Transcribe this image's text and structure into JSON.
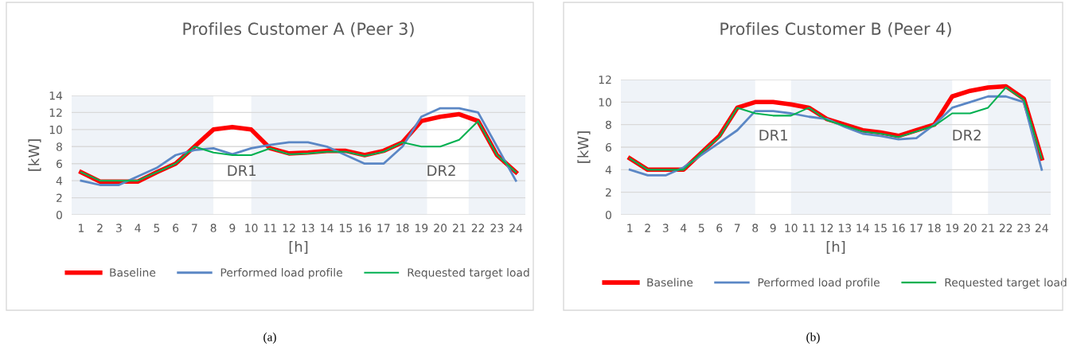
{
  "chart_data": [
    {
      "type": "line",
      "title": "Profiles Customer A (Peer 3)",
      "xlabel": "[h]",
      "ylabel": "[kW]",
      "x": [
        1,
        2,
        3,
        4,
        5,
        6,
        7,
        8,
        9,
        10,
        11,
        12,
        13,
        14,
        15,
        16,
        17,
        18,
        19,
        20,
        21,
        22,
        23,
        24
      ],
      "xlim": [
        0.5,
        24.5
      ],
      "xticks": [
        1,
        2,
        3,
        4,
        5,
        6,
        7,
        8,
        9,
        10,
        11,
        12,
        13,
        14,
        15,
        16,
        17,
        18,
        19,
        20,
        21,
        22,
        23,
        24
      ],
      "ylim": [
        0,
        14
      ],
      "yticks": [
        0,
        2,
        4,
        6,
        8,
        10,
        12,
        14
      ],
      "grid": "y",
      "legend": "bottom",
      "series": [
        {
          "name": "Baseline",
          "color": "#ff0000",
          "values": [
            5,
            3.9,
            3.9,
            3.9,
            5,
            6,
            8,
            10,
            10.3,
            10,
            7.8,
            7.2,
            7.3,
            7.5,
            7.5,
            7,
            7.5,
            8.5,
            11,
            11.5,
            11.8,
            11,
            7,
            5
          ]
        },
        {
          "name": "Performed load profile",
          "color": "#5b87c5",
          "values": [
            4,
            3.5,
            3.5,
            4.5,
            5.5,
            7,
            7.6,
            7.8,
            7.1,
            7.8,
            8.2,
            8.5,
            8.5,
            8,
            7,
            6,
            6,
            8,
            11.5,
            12.5,
            12.5,
            12,
            8,
            4
          ]
        },
        {
          "name": "Requested target load",
          "color": "#00b050",
          "values": [
            5,
            4,
            4,
            4,
            5,
            6,
            8,
            7.3,
            7,
            7,
            7.8,
            7.1,
            7.2,
            7.4,
            7.4,
            6.9,
            7.4,
            8.5,
            8,
            8,
            8.8,
            11,
            7,
            5
          ]
        }
      ],
      "bands": [
        {
          "axis": "x",
          "from": 0.5,
          "to": 8,
          "color": "#eff3f8"
        },
        {
          "axis": "x",
          "from": 10,
          "to": 19.3,
          "color": "#eff3f8"
        },
        {
          "axis": "x",
          "from": 21.5,
          "to": 24.5,
          "color": "#eff3f8"
        }
      ],
      "annotations": [
        "DR1",
        "DR2",
        "(a)"
      ]
    },
    {
      "type": "line",
      "title": "Profiles Customer B (Peer 4)",
      "xlabel": "[h]",
      "ylabel": "[kW]",
      "x": [
        1,
        2,
        3,
        4,
        5,
        6,
        7,
        8,
        9,
        10,
        11,
        12,
        13,
        14,
        15,
        16,
        17,
        18,
        19,
        20,
        21,
        22,
        23,
        24
      ],
      "xlim": [
        0.5,
        24.5
      ],
      "xticks": [
        1,
        2,
        3,
        4,
        5,
        6,
        7,
        8,
        9,
        10,
        11,
        12,
        13,
        14,
        15,
        16,
        17,
        18,
        19,
        20,
        21,
        22,
        23,
        24
      ],
      "ylim": [
        0,
        12
      ],
      "yticks": [
        0,
        2,
        4,
        6,
        8,
        10,
        12
      ],
      "grid": "y",
      "legend": "bottom",
      "series": [
        {
          "name": "Baseline",
          "color": "#ff0000",
          "values": [
            5,
            4,
            4,
            4,
            5.5,
            7,
            9.5,
            10,
            10,
            9.8,
            9.5,
            8.5,
            8,
            7.5,
            7.3,
            7,
            7.5,
            8,
            10.5,
            11,
            11.3,
            11.4,
            10.3,
            5
          ]
        },
        {
          "name": "Performed load profile",
          "color": "#5b87c5",
          "values": [
            4,
            3.5,
            3.5,
            4.2,
            5.3,
            6.4,
            7.5,
            9.2,
            9.2,
            9,
            8.7,
            8.5,
            7.8,
            7.2,
            7,
            6.7,
            6.8,
            8,
            9.5,
            10,
            10.5,
            10.5,
            10,
            4
          ]
        },
        {
          "name": "Requested target load",
          "color": "#00b050",
          "values": [
            5,
            4,
            4,
            4,
            5.5,
            6.9,
            9.5,
            9,
            8.8,
            8.8,
            9.5,
            8.4,
            7.9,
            7.4,
            7.2,
            6.9,
            7.4,
            7.9,
            9,
            9,
            9.5,
            11.3,
            10.2,
            5
          ]
        }
      ],
      "bands": [
        {
          "axis": "x",
          "from": 0.5,
          "to": 8,
          "color": "#eff3f8"
        },
        {
          "axis": "x",
          "from": 10,
          "to": 19,
          "color": "#eff3f8"
        },
        {
          "axis": "x",
          "from": 21,
          "to": 24.5,
          "color": "#eff3f8"
        }
      ],
      "annotations": [
        "DR1",
        "DR2",
        "(b)"
      ]
    }
  ]
}
